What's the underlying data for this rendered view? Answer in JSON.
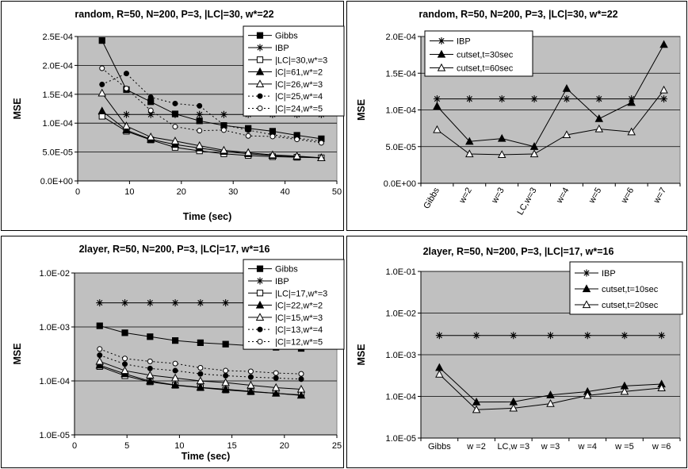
{
  "chart_data": [
    {
      "type": "line",
      "title": "random, R=50, N=200, P=3, |LC|=30, w*=22",
      "xlabel": "Time (sec)",
      "ylabel": "MSE",
      "xlim": [
        0,
        50
      ],
      "ylim": [
        0,
        0.00025
      ],
      "xticks": [
        "0",
        "10",
        "20",
        "30",
        "40",
        "50"
      ],
      "yticks": [
        "0.0E+00",
        "5.0E-05",
        "1.0E-04",
        "1.5E-04",
        "2.0E-04",
        "2.5E-04"
      ],
      "grid": "horizontal",
      "legend_position": "top-right",
      "series": [
        {
          "name": "Gibbs",
          "marker": "square-filled",
          "dash": "solid",
          "x": [
            4.7,
            9.4,
            14.1,
            18.8,
            23.5,
            28.2,
            32.9,
            37.6,
            42.3,
            47
          ],
          "y": [
            0.000243,
            0.000158,
            0.000137,
            0.000116,
            0.000104,
            9.6e-05,
            9.1e-05,
            8.6e-05,
            7.9e-05,
            7.3e-05
          ]
        },
        {
          "name": "IBP",
          "marker": "star",
          "dash": "solid",
          "x": [
            4.7,
            9.4,
            14.1,
            18.8,
            23.5,
            28.2,
            32.9,
            37.6,
            42.3,
            47
          ],
          "y": [
            0.000115,
            0.000115,
            0.000115,
            0.000115,
            0.000115,
            0.000115,
            0.000115,
            0.000115,
            0.000115,
            0.000115
          ]
        },
        {
          "name": "|LC|=30,w*=3",
          "marker": "square-open",
          "dash": "solid",
          "x": [
            4.7,
            9.4,
            14.1,
            18.8,
            23.5,
            28.2,
            32.9,
            37.6,
            42.3,
            47
          ],
          "y": [
            0.000112,
            8.6e-05,
            7.1e-05,
            5.8e-05,
            5.2e-05,
            4.7e-05,
            4.4e-05,
            4.2e-05,
            4.1e-05,
            4e-05
          ]
        },
        {
          "name": "|C|=61,w*=2",
          "marker": "triangle-filled",
          "dash": "solid",
          "x": [
            4.7,
            9.4,
            14.1,
            18.8,
            23.5,
            28.2,
            32.9,
            37.6,
            42.3,
            47
          ],
          "y": [
            0.000121,
            8.8e-05,
            7.2e-05,
            6.3e-05,
            5.7e-05,
            5.1e-05,
            4.7e-05,
            4.4e-05,
            4.2e-05,
            4e-05
          ]
        },
        {
          "name": "|C|=26,w*=3",
          "marker": "triangle-open",
          "dash": "solid",
          "x": [
            4.7,
            9.4,
            14.1,
            18.8,
            23.5,
            28.2,
            32.9,
            37.6,
            42.3,
            47
          ],
          "y": [
            0.000152,
            9.5e-05,
            7.6e-05,
            6.9e-05,
            6.1e-05,
            5.3e-05,
            4.9e-05,
            4.5e-05,
            4.3e-05,
            4e-05
          ]
        },
        {
          "name": "|C|=25,w*=4",
          "marker": "circle-filled",
          "dash": "dotted",
          "x": [
            4.7,
            9.4,
            14.1,
            18.8,
            23.5,
            28.2,
            32.9,
            37.6,
            42.3,
            47
          ],
          "y": [
            0.000167,
            0.000186,
            0.000145,
            0.000134,
            0.00013,
            9.7e-05,
            8.8e-05,
            8e-05,
            7.4e-05,
            6.9e-05
          ]
        },
        {
          "name": "|C|=24,w*=5",
          "marker": "circle-open",
          "dash": "dotted",
          "x": [
            4.7,
            9.4,
            14.1,
            18.8,
            23.5,
            28.2,
            32.9,
            37.6,
            42.3,
            47
          ],
          "y": [
            0.000195,
            0.00016,
            0.000122,
            9.4e-05,
            8.7e-05,
            8.8e-05,
            7.8e-05,
            7.7e-05,
            7.2e-05,
            6.6e-05
          ]
        }
      ]
    },
    {
      "type": "line",
      "title": "random, R=50, N=200, P=3, |LC|=30, w*=22",
      "xlabel": "",
      "ylabel": "MSE",
      "categories": [
        "Gibbs",
        "w=2",
        "w=3",
        "LC,w=3",
        "w=4",
        "w=5",
        "w=6",
        "w=7"
      ],
      "ylim": [
        0,
        0.0002
      ],
      "yticks": [
        "0.0E+00",
        "5.0E-05",
        "1.0E-04",
        "1.5E-04",
        "2.0E-04"
      ],
      "grid": "horizontal",
      "legend_position": "top-left",
      "series": [
        {
          "name": "IBP",
          "marker": "star",
          "values": [
            0.000115,
            0.000115,
            0.000115,
            0.000115,
            0.000115,
            0.000115,
            0.000115,
            0.000115
          ]
        },
        {
          "name": "cutset,t=30sec",
          "marker": "triangle-filled",
          "values": [
            0.000105,
            5.7e-05,
            6.1e-05,
            5e-05,
            0.000129,
            8.8e-05,
            0.00011,
            0.000189
          ]
        },
        {
          "name": "cutset,t=60sec",
          "marker": "triangle-open",
          "values": [
            7.3e-05,
            4e-05,
            3.9e-05,
            4e-05,
            6.6e-05,
            7.4e-05,
            7e-05,
            0.000127
          ]
        }
      ]
    },
    {
      "type": "line",
      "title": "2layer, R=50, N=200, P=3, |LC|=17, w*=16",
      "xlabel": "Time (sec)",
      "ylabel": "MSE",
      "xlim": [
        0,
        25
      ],
      "ylim": [
        1e-05,
        0.01
      ],
      "yscale": "log",
      "xticks": [
        "0",
        "5",
        "10",
        "15",
        "20",
        "25"
      ],
      "yticks": [
        "1.0E-05",
        "1.0E-04",
        "1.0E-03",
        "1.0E-02"
      ],
      "grid": "horizontal",
      "legend_position": "top-right",
      "series": [
        {
          "name": "Gibbs",
          "marker": "square-filled",
          "dash": "solid",
          "x": [
            2.4,
            4.8,
            7.2,
            9.6,
            12,
            14.4,
            16.8,
            19.2,
            21.6
          ],
          "y": [
            0.00105,
            0.00078,
            0.00066,
            0.00056,
            0.00051,
            0.00048,
            0.00045,
            0.00042,
            0.0004
          ]
        },
        {
          "name": "IBP",
          "marker": "star",
          "dash": "solid",
          "x": [
            2.4,
            4.8,
            7.2,
            9.6,
            12,
            14.4,
            16.8,
            19.2,
            21.6
          ],
          "y": [
            0.0028,
            0.0028,
            0.0028,
            0.0028,
            0.0028,
            0.0028,
            0.0028,
            0.0028,
            0.0028
          ]
        },
        {
          "name": "|LC|=17,w*=3",
          "marker": "square-open",
          "dash": "solid",
          "x": [
            2.4,
            4.8,
            7.2,
            9.6,
            12,
            14.4,
            16.8,
            19.2,
            21.6
          ],
          "y": [
            0.000185,
            0.000125,
            9.6e-05,
            8.3e-05,
            7.5e-05,
            6.8e-05,
            6.3e-05,
            5.9e-05,
            5.5e-05
          ]
        },
        {
          "name": "|C|=22,w*=2",
          "marker": "triangle-filled",
          "dash": "solid",
          "x": [
            2.4,
            4.8,
            7.2,
            9.6,
            12,
            14.4,
            16.8,
            19.2,
            21.6
          ],
          "y": [
            0.000195,
            0.000135,
            9.9e-05,
            8.4e-05,
            7.6e-05,
            7e-05,
            6.4e-05,
            5.9e-05,
            5.4e-05
          ]
        },
        {
          "name": "|C|=15,w*=3",
          "marker": "triangle-open",
          "dash": "solid",
          "x": [
            2.4,
            4.8,
            7.2,
            9.6,
            12,
            14.4,
            16.8,
            19.2,
            21.6
          ],
          "y": [
            0.00023,
            0.000155,
            0.000128,
            0.000113,
            0.0001,
            9.3e-05,
            8.3e-05,
            7.5e-05,
            7e-05
          ]
        },
        {
          "name": "|C|=13,w*=4",
          "marker": "circle-filled",
          "dash": "dotted",
          "x": [
            2.4,
            4.8,
            7.2,
            9.6,
            12,
            14.4,
            16.8,
            19.2,
            21.6
          ],
          "y": [
            0.0003,
            0.000205,
            0.00017,
            0.000155,
            0.000135,
            0.000125,
            0.000118,
            0.000113,
            0.000108
          ]
        },
        {
          "name": "|C|=12,w*=5",
          "marker": "circle-open",
          "dash": "dotted",
          "x": [
            2.4,
            4.8,
            7.2,
            9.6,
            12,
            14.4,
            16.8,
            19.2,
            21.6
          ],
          "y": [
            0.00039,
            0.00026,
            0.00023,
            0.00021,
            0.000175,
            0.000155,
            0.00015,
            0.00014,
            0.000135
          ]
        }
      ]
    },
    {
      "type": "line",
      "title": "2layer, R=50, N=200, P=3, |LC|=17, w*=16",
      "xlabel": "",
      "ylabel": "MSE",
      "categories": [
        "Gibbs",
        "w =2",
        "LC,w =3",
        "w =3",
        "w =4",
        "w =5",
        "w =6"
      ],
      "ylim": [
        1e-05,
        0.1
      ],
      "yscale": "log",
      "yticks": [
        "1.0E-05",
        "1.0E-04",
        "1.0E-03",
        "1.0E-02",
        "1.0E-01"
      ],
      "grid": "horizontal",
      "legend_position": "top-right",
      "series": [
        {
          "name": "IBP",
          "marker": "star",
          "values": [
            0.0029,
            0.0029,
            0.0029,
            0.0029,
            0.0029,
            0.0029,
            0.0029
          ]
        },
        {
          "name": "cutset,t=10sec",
          "marker": "triangle-filled",
          "values": [
            0.00049,
            7.3e-05,
            7.4e-05,
            0.000108,
            0.00013,
            0.000178,
            0.000197
          ]
        },
        {
          "name": "cutset,t=20sec",
          "marker": "triangle-open",
          "values": [
            0.00034,
            4.8e-05,
            5.2e-05,
            6.7e-05,
            0.000105,
            0.000131,
            0.000159
          ]
        }
      ]
    }
  ]
}
